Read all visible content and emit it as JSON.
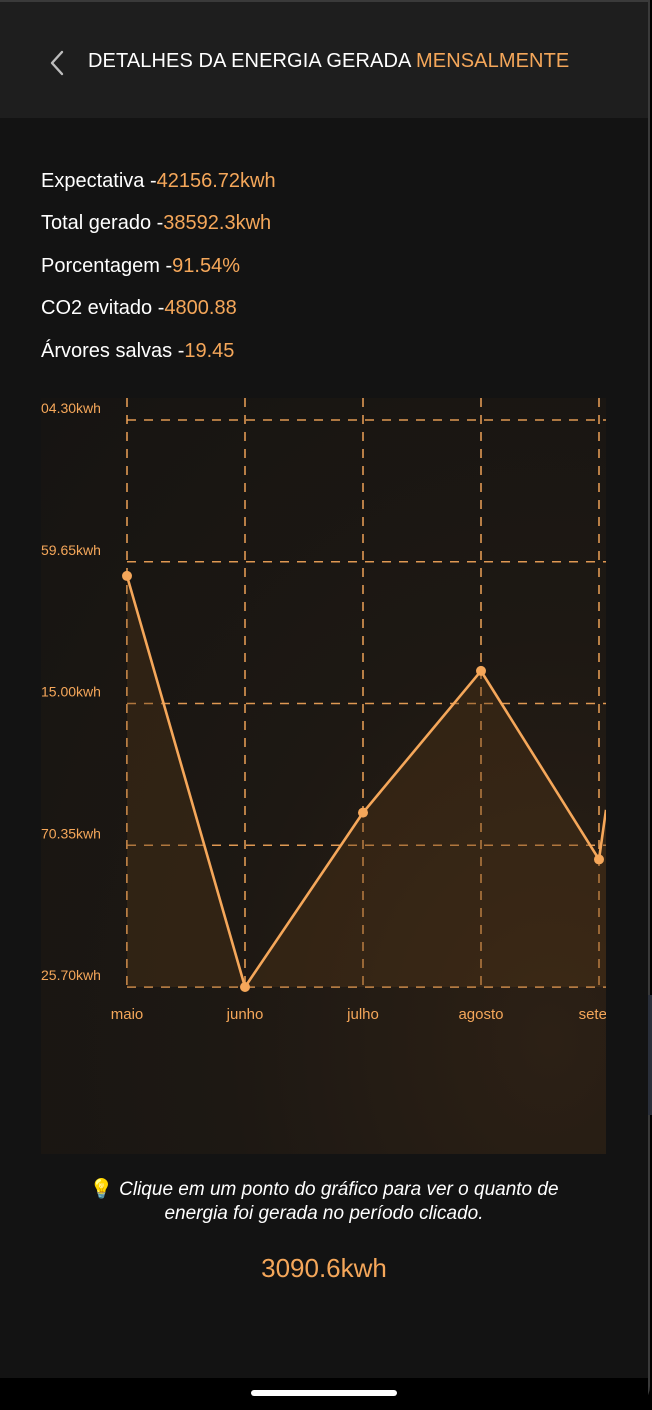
{
  "header": {
    "back_icon": "chevron-left-icon",
    "title_main": "DETALHES DA ENERGIA GERADA",
    "title_accent": "MENSALMENTE"
  },
  "stats": [
    {
      "label": "Expectativa - ",
      "value": "42156.72kwh"
    },
    {
      "label": "Total gerado - ",
      "value": "38592.3kwh"
    },
    {
      "label": "Porcentagem - ",
      "value": "91.54%"
    },
    {
      "label": "CO2 evitado - ",
      "value": "4800.88"
    },
    {
      "label": "Árvores salvas - ",
      "value": "19.45"
    }
  ],
  "chart_data": {
    "type": "line",
    "categories": [
      "maio",
      "junho",
      "julho",
      "agosto",
      "setem"
    ],
    "y_tick_labels": [
      "04.30kwh",
      "59.65kwh",
      "15.00kwh",
      "70.35kwh",
      "25.70kwh"
    ],
    "ylim": [
      0,
      4
    ],
    "values": [
      2.9,
      0.0,
      1.23,
      2.23,
      0.9
    ],
    "trailing_value": 1.25,
    "grid": true,
    "colors": {
      "line": "#f5a75a",
      "grid": "#f5a75a",
      "fill": "#5a3a18"
    }
  },
  "hint": {
    "icon": "lightbulb-icon",
    "line1": "Clique em um ponto do gráfico para ver o quanto de",
    "line2": "energia foi gerada no período clicado."
  },
  "selected_value": "3090.6kwh"
}
